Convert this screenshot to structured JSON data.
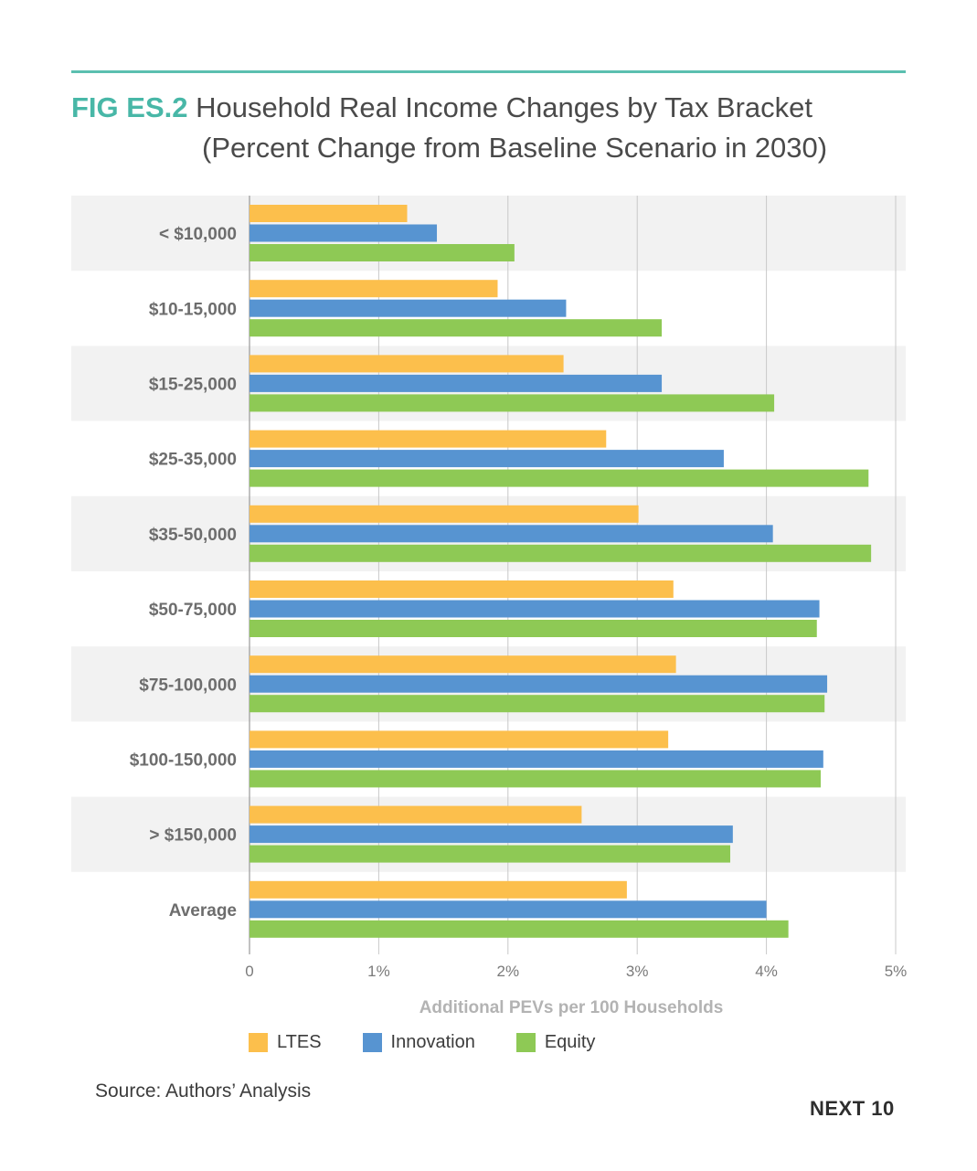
{
  "figure": {
    "number": "FIG ES.2",
    "title_line1": "Household Real Income Changes by Tax Bracket",
    "title_line2": "(Percent Change from Baseline Scenario in 2030)"
  },
  "chart_data": {
    "type": "bar",
    "orientation": "horizontal",
    "title": "Household Real Income Changes by Tax Bracket (Percent Change from Baseline Scenario in 2030)",
    "xlabel": "Additional PEVs per 100 Households",
    "ylabel": "",
    "xlim": [
      0,
      5
    ],
    "x_ticks": [
      "0",
      "1%",
      "2%",
      "3%",
      "4%",
      "5%"
    ],
    "grid": "vertical",
    "legend_position": "bottom-left",
    "categories": [
      "< $10,000",
      "$10-15,000",
      "$15-25,000",
      "$25-35,000",
      "$35-50,000",
      "$50-75,000",
      "$75-100,000",
      "$100-150,000",
      "> $150,000",
      "Average"
    ],
    "series": [
      {
        "name": "LTES",
        "color": "#fcbf4c",
        "values": [
          1.22,
          1.92,
          2.43,
          2.76,
          3.01,
          3.28,
          3.3,
          3.24,
          2.57,
          2.92
        ]
      },
      {
        "name": "Innovation",
        "color": "#5794d1",
        "values": [
          1.45,
          2.45,
          3.19,
          3.67,
          4.05,
          4.41,
          4.47,
          4.44,
          3.74,
          4.0
        ]
      },
      {
        "name": "Equity",
        "color": "#8ec955",
        "values": [
          2.05,
          3.19,
          4.06,
          4.79,
          4.81,
          4.39,
          4.45,
          4.42,
          3.72,
          4.17
        ]
      }
    ]
  },
  "source": "Source: Authors’ Analysis",
  "brand": "NEXT 10"
}
